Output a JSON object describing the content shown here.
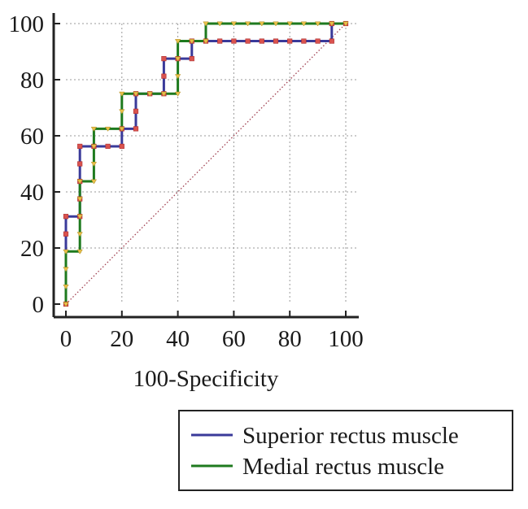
{
  "chart_data": {
    "type": "line",
    "title": "",
    "xlabel": "100-Specificity",
    "ylabel": "",
    "xlim": [
      0,
      100
    ],
    "ylim": [
      0,
      100
    ],
    "x_ticks": [
      0,
      20,
      40,
      60,
      80,
      100
    ],
    "y_ticks": [
      0,
      20,
      40,
      60,
      80,
      100
    ],
    "x_tick_labels": [
      "0",
      "20",
      "40",
      "60",
      "80",
      "100"
    ],
    "y_tick_labels": [
      "0",
      "20",
      "40",
      "60",
      "80",
      "100"
    ],
    "grid": true,
    "legend_position": "bottom-right",
    "series": [
      {
        "name": "Superior rectus muscle",
        "color": "#3a3a9a",
        "marker_color": "#d9534f",
        "points": [
          [
            0,
            0
          ],
          [
            0,
            25
          ],
          [
            0,
            31.25
          ],
          [
            5,
            31.25
          ],
          [
            5,
            37.5
          ],
          [
            5,
            43.75
          ],
          [
            5,
            50
          ],
          [
            5,
            56.25
          ],
          [
            10,
            56.25
          ],
          [
            15,
            56.25
          ],
          [
            20,
            56.25
          ],
          [
            20,
            62.5
          ],
          [
            25,
            62.5
          ],
          [
            25,
            68.75
          ],
          [
            25,
            75
          ],
          [
            30,
            75
          ],
          [
            35,
            75
          ],
          [
            35,
            81.25
          ],
          [
            35,
            87.5
          ],
          [
            40,
            87.5
          ],
          [
            45,
            87.5
          ],
          [
            45,
            93.75
          ],
          [
            50,
            93.75
          ],
          [
            55,
            93.75
          ],
          [
            60,
            93.75
          ],
          [
            65,
            93.75
          ],
          [
            70,
            93.75
          ],
          [
            75,
            93.75
          ],
          [
            80,
            93.75
          ],
          [
            85,
            93.75
          ],
          [
            90,
            93.75
          ],
          [
            95,
            93.75
          ],
          [
            95,
            100
          ],
          [
            100,
            100
          ]
        ]
      },
      {
        "name": "Medial rectus muscle",
        "color": "#1e7a1e",
        "marker_color": "#e8c14a",
        "points": [
          [
            0,
            0
          ],
          [
            0,
            6.25
          ],
          [
            0,
            12.5
          ],
          [
            0,
            18.75
          ],
          [
            5,
            18.75
          ],
          [
            5,
            25
          ],
          [
            5,
            31.25
          ],
          [
            5,
            37.5
          ],
          [
            5,
            43.75
          ],
          [
            10,
            43.75
          ],
          [
            10,
            50
          ],
          [
            10,
            56.25
          ],
          [
            10,
            62.5
          ],
          [
            15,
            62.5
          ],
          [
            20,
            62.5
          ],
          [
            20,
            68.75
          ],
          [
            20,
            75
          ],
          [
            25,
            75
          ],
          [
            30,
            75
          ],
          [
            35,
            75
          ],
          [
            40,
            75
          ],
          [
            40,
            81.25
          ],
          [
            40,
            87.5
          ],
          [
            40,
            93.75
          ],
          [
            45,
            93.75
          ],
          [
            50,
            93.75
          ],
          [
            50,
            100
          ],
          [
            55,
            100
          ],
          [
            60,
            100
          ],
          [
            65,
            100
          ],
          [
            70,
            100
          ],
          [
            75,
            100
          ],
          [
            80,
            100
          ],
          [
            85,
            100
          ],
          [
            90,
            100
          ],
          [
            95,
            100
          ],
          [
            100,
            100
          ]
        ]
      }
    ],
    "reference_line": {
      "name": "chance diagonal",
      "color": "#a04050",
      "points": [
        [
          0,
          0
        ],
        [
          100,
          100
        ]
      ]
    }
  }
}
